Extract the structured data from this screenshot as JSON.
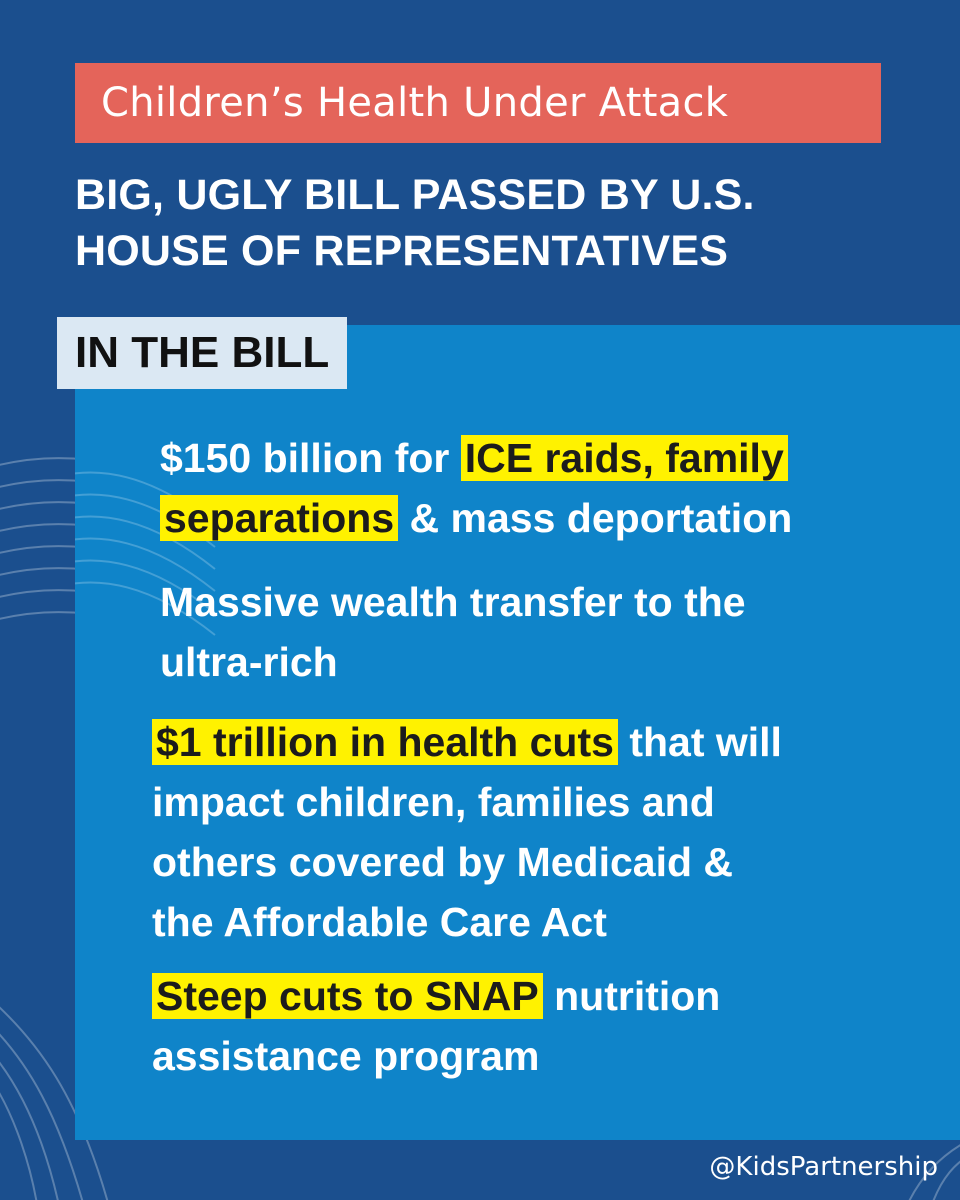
{
  "title": "Children’s Health Under Attack",
  "headline": {
    "line1": "BIG, UGLY BILL PASSED BY U.S.",
    "line2": "HOUSE OF REPRESENTATIVES"
  },
  "section_label": "IN THE BILL",
  "bullets": [
    {
      "lines": [
        {
          "plain_before": "$150 billion for ",
          "highlight": "ICE raids, family"
        },
        {
          "highlight": "separations",
          "plain_after": " & mass deportation"
        }
      ]
    },
    {
      "lines": [
        {
          "plain": "Massive wealth transfer to the"
        },
        {
          "plain": "ultra-rich"
        }
      ]
    },
    {
      "lines": [
        {
          "highlight": "$1 trillion in health cuts",
          "plain_after": " that will"
        },
        {
          "plain": "impact children, families and"
        },
        {
          "plain": "others covered by Medicaid &"
        },
        {
          "plain": "the Affordable Care Act"
        }
      ]
    },
    {
      "lines": [
        {
          "highlight": "Steep cuts to SNAP",
          "plain_after": " nutrition"
        },
        {
          "plain": "assistance program"
        }
      ]
    }
  ],
  "footer_handle": "@KidsPartnership",
  "colors": {
    "background": "#1b4f8e",
    "title_banner": "#e4645a",
    "content_panel": "#0f84c9",
    "section_label_bg": "#dbe8f3",
    "highlight": "#fff200",
    "text": "#ffffff"
  }
}
